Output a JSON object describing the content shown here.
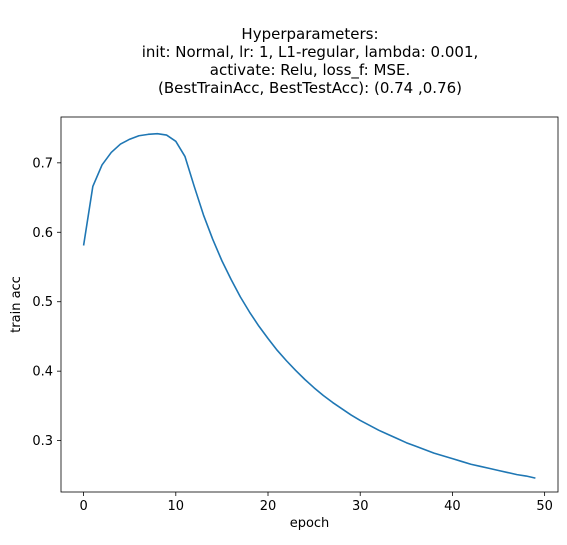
{
  "chart_data": {
    "type": "line",
    "title": [
      "Hyperparameters:",
      "init: Normal, lr: 1, L1-regular, lambda: 0.001,",
      "activate: Relu, loss_f: MSE.",
      "(BestTrainAcc, BestTestAcc): (0.74 ,0.76)"
    ],
    "xlabel": "epoch",
    "ylabel": "train acc",
    "xlim": [
      -2.45,
      51.45
    ],
    "ylim": [
      0.226,
      0.766
    ],
    "xticks": [
      0,
      10,
      20,
      30,
      40,
      50
    ],
    "yticks": [
      0.3,
      0.4,
      0.5,
      0.6,
      0.7
    ],
    "grid": false,
    "line_color": "#1f77b4",
    "series": [
      {
        "x": [
          0,
          1,
          2,
          3,
          4,
          5,
          6,
          7,
          8,
          9,
          10,
          11,
          12,
          13,
          14,
          15,
          16,
          17,
          18,
          19,
          20,
          21,
          22,
          23,
          24,
          25,
          26,
          27,
          28,
          29,
          30,
          31,
          32,
          33,
          34,
          35,
          36,
          37,
          38,
          39,
          40,
          41,
          42,
          43,
          44,
          45,
          46,
          47,
          48,
          49
        ],
        "values": [
          0.581,
          0.666,
          0.697,
          0.715,
          0.727,
          0.734,
          0.739,
          0.741,
          0.742,
          0.74,
          0.731,
          0.709,
          0.666,
          0.625,
          0.59,
          0.559,
          0.532,
          0.507,
          0.485,
          0.465,
          0.447,
          0.43,
          0.415,
          0.401,
          0.388,
          0.376,
          0.365,
          0.355,
          0.346,
          0.337,
          0.329,
          0.322,
          0.315,
          0.309,
          0.303,
          0.297,
          0.292,
          0.287,
          0.282,
          0.278,
          0.274,
          0.27,
          0.266,
          0.263,
          0.26,
          0.257,
          0.254,
          0.251,
          0.249,
          0.246
        ]
      }
    ]
  }
}
